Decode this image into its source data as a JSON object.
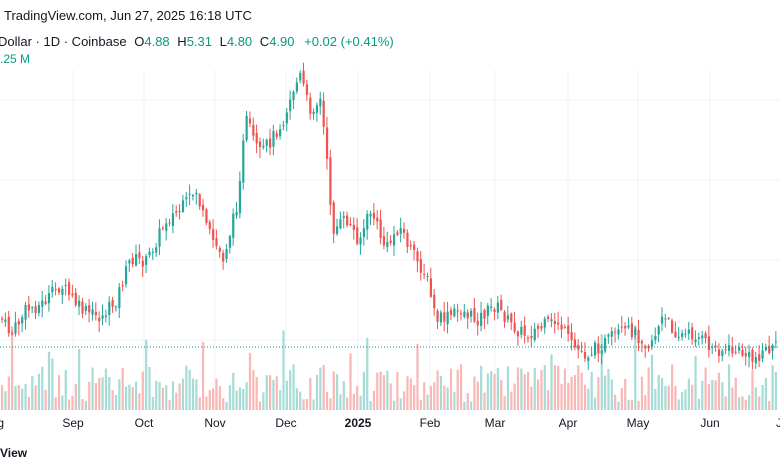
{
  "header": {
    "source": "TradingView.com, Jun 27, 2025 16:18 UTC"
  },
  "legend": {
    "symbol": "Dollar · 1D · Coinbase",
    "open_label": "O",
    "open": "4.88",
    "high_label": "H",
    "high": "5.31",
    "low_label": "L",
    "low": "4.80",
    "close_label": "C",
    "close": "4.90",
    "change": "+0.02 (+0.41%)"
  },
  "volume": {
    "value": ".25 M"
  },
  "footer": {
    "text": "View"
  },
  "colors": {
    "up": "#26a69a",
    "down": "#ef5350",
    "up_volume": "#a6dcd5",
    "down_volume": "#f7b8b6",
    "price_line": "#089981",
    "grid": "#f0f3fa"
  },
  "chart_data": {
    "type": "candlestick",
    "x_ticks": [
      "ug",
      "Sep",
      "Oct",
      "Nov",
      "Dec",
      "2025",
      "Feb",
      "Mar",
      "Apr",
      "May",
      "Jun",
      "Ju"
    ],
    "bold_ticks": [
      "2025"
    ],
    "last_close": 4.9,
    "grid": true
  }
}
